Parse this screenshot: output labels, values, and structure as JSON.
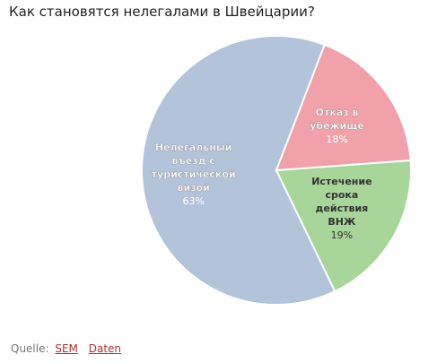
{
  "title": "Как становятся нелегалами в Швейцарии?",
  "chart_data": {
    "type": "pie",
    "title": "Как становятся нелегалами в Швейцарии?",
    "series": [
      {
        "name": "",
        "values": [
          63,
          18,
          19
        ]
      }
    ],
    "slices": [
      {
        "label": "Нелегальный въезд с туристической визой",
        "label_lines": [
          "Нелегальный",
          "въезд с",
          "туристической",
          "визой"
        ],
        "value": 63,
        "value_label": "63%",
        "color": "#b3c3d9",
        "text_color": "#ffffff"
      },
      {
        "label": "Отказ в убежище",
        "label_lines": [
          "Отказ в",
          "убежище"
        ],
        "value": 18,
        "value_label": "18%",
        "color": "#f0a1aa",
        "text_color": "#ffffff"
      },
      {
        "label": "Истечение срока действия ВНЖ",
        "label_lines": [
          "Истечение",
          "срока",
          "действия",
          "ВНЖ"
        ],
        "value": 19,
        "value_label": "19%",
        "color": "#a8d59a",
        "text_color": "#333333"
      }
    ],
    "legend": "none",
    "labels_inside": true
  },
  "source": {
    "prefix": "Quelle:",
    "links": [
      "SEM",
      "Daten"
    ]
  }
}
